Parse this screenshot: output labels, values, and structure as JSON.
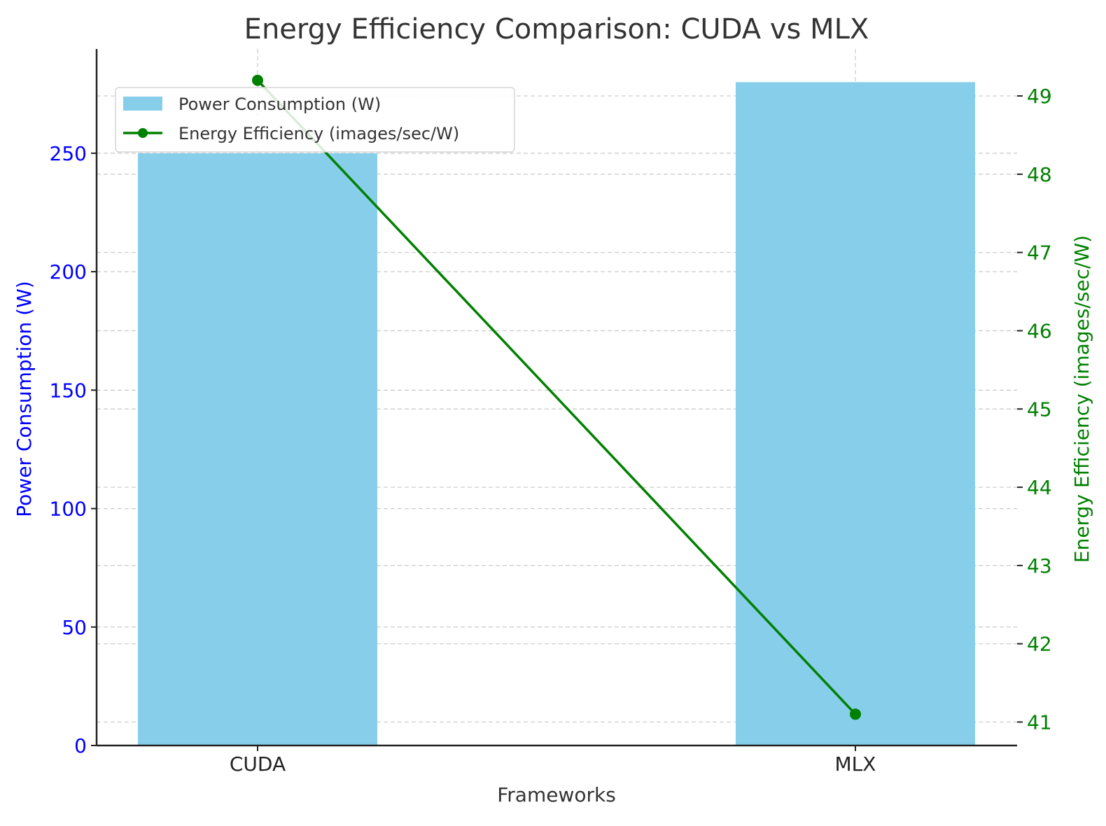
{
  "chart_data": {
    "type": "bar",
    "title": "Energy Efficiency Comparison: CUDA vs MLX",
    "xlabel": "Frameworks",
    "categories": [
      "CUDA",
      "MLX"
    ],
    "series": [
      {
        "name": "Power Consumption (W)",
        "type": "bar",
        "axis": "left",
        "color": "#87ceeb",
        "values": [
          250,
          280
        ]
      },
      {
        "name": "Energy Efficiency (images/sec/W)",
        "type": "line",
        "axis": "right",
        "color": "#008000",
        "marker": "circle",
        "values": [
          49.2,
          41.1
        ]
      }
    ],
    "y_left": {
      "label": "Power Consumption (W)",
      "color": "#0000ff",
      "lim": [
        0,
        294
      ],
      "ticks": [
        0,
        50,
        100,
        150,
        200,
        250
      ]
    },
    "y_right": {
      "label": "Energy Efficiency (images/sec/W)",
      "color": "#008000",
      "lim": [
        40.7,
        49.6
      ],
      "ticks": [
        41,
        42,
        43,
        44,
        45,
        46,
        47,
        48,
        49
      ]
    },
    "grid": true,
    "legend": "top-left"
  }
}
